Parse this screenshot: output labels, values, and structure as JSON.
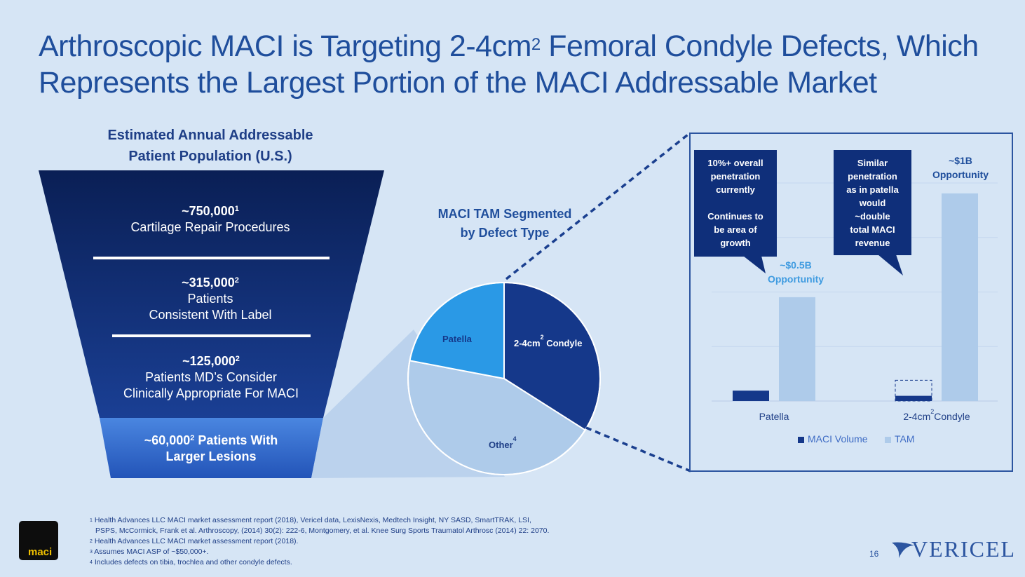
{
  "title": {
    "line1_pre": "Arthroscopic MACI is Targeting 2-4cm",
    "line1_sup": "2",
    "line1_post": " Femoral Condyle Defects, Which",
    "line2": "Represents the Largest Portion of the MACI Addressable Market"
  },
  "funnel": {
    "heading_line1": "Estimated Annual Addressable",
    "heading_line2": "Patient Population (U.S.)",
    "tiers": [
      {
        "value": "~750,000",
        "sup": "1",
        "line2": "Cartilage Repair Procedures",
        "line3": ""
      },
      {
        "value": "~315,000",
        "sup": "2",
        "line2": "Patients",
        "line3": "Consistent With Label"
      },
      {
        "value": "~125,000",
        "sup": "2",
        "line2": "Patients MD’s Consider",
        "line3": "Clinically Appropriate For MACI"
      },
      {
        "value": "~60,000",
        "sup": "2",
        "line2": " Patients With",
        "line3": "Larger Lesions"
      }
    ]
  },
  "tam": {
    "heading_line1": "MACI TAM Segmented",
    "heading_line2": "by Defect Type"
  },
  "pie_chart": {
    "type": "pie",
    "slices": [
      {
        "label": "2-4cm",
        "sup": "2",
        "label_post": " Condyle",
        "share": 0.34,
        "color": "#15388a"
      },
      {
        "label": "Other",
        "sup": "4",
        "label_post": "",
        "share": 0.44,
        "color": "#aecbea"
      },
      {
        "label": "Patella",
        "sup": "",
        "label_post": "",
        "share": 0.22,
        "color": "#2a99e6"
      }
    ]
  },
  "chart_data": {
    "type": "bar",
    "categories": [
      "Patella",
      "2-4cm Condyle"
    ],
    "category_display": [
      {
        "label": "Patella",
        "sup": "",
        "post": ""
      },
      {
        "label": "2-4cm",
        "sup": "2",
        "post": "Condyle"
      }
    ],
    "series": [
      {
        "name": "MACI Volume",
        "values": [
          0.05,
          0.025
        ],
        "color": "#15388a"
      },
      {
        "name": "TAM",
        "values": [
          0.5,
          1.0
        ],
        "color": "#aecbea"
      }
    ],
    "projected_maci_volume": [
      null,
      0.1
    ],
    "bar_labels": [
      {
        "line1": "~$0.5B",
        "line2": "Opportunity",
        "color": "#3f9be0"
      },
      {
        "line1": "~$1B",
        "line2": "Opportunity",
        "color": "#1f4e9c"
      }
    ],
    "ylim": [
      0,
      1.05
    ],
    "grid": true,
    "legend": "bottom",
    "callouts": [
      {
        "lines": [
          "10%+ overall",
          "penetration",
          "currently",
          "",
          "Continues to",
          "be area of",
          "growth"
        ]
      },
      {
        "lines": [
          "Similar",
          "penetration",
          "as in patella",
          "would",
          "~double",
          "total MACI",
          "revenue"
        ]
      }
    ]
  },
  "footnotes": [
    {
      "sup": "1",
      "text": "Health Advances LLC MACI market assessment report (2018), Vericel data, LexisNexis, Medtech Insight, NY SASD, SmartTRAK, LSI, PSPS,   McCormick, Frank et al.  Arthroscopy, (2014) 30(2): 222-6, Montgomery, et al. Knee Surg Sports Traumatol Arthrosc (2014) 22: 2070."
    },
    {
      "sup": "2",
      "text": "Health Advances LLC MACI market assessment report (2018)."
    },
    {
      "sup": "3",
      "text": "Assumes MACI ASP of ~$50,000+."
    },
    {
      "sup": "4",
      "text": "Includes defects on tibia, trochlea and other condyle defects."
    }
  ],
  "page_number": "16",
  "logos": {
    "maci": "maci",
    "vericel": "VERICEL"
  },
  "colors": {
    "navy": "#0f2f7a",
    "light_blue": "#aecbea",
    "bright_blue": "#2a99e6",
    "background": "#d6e5f5"
  }
}
